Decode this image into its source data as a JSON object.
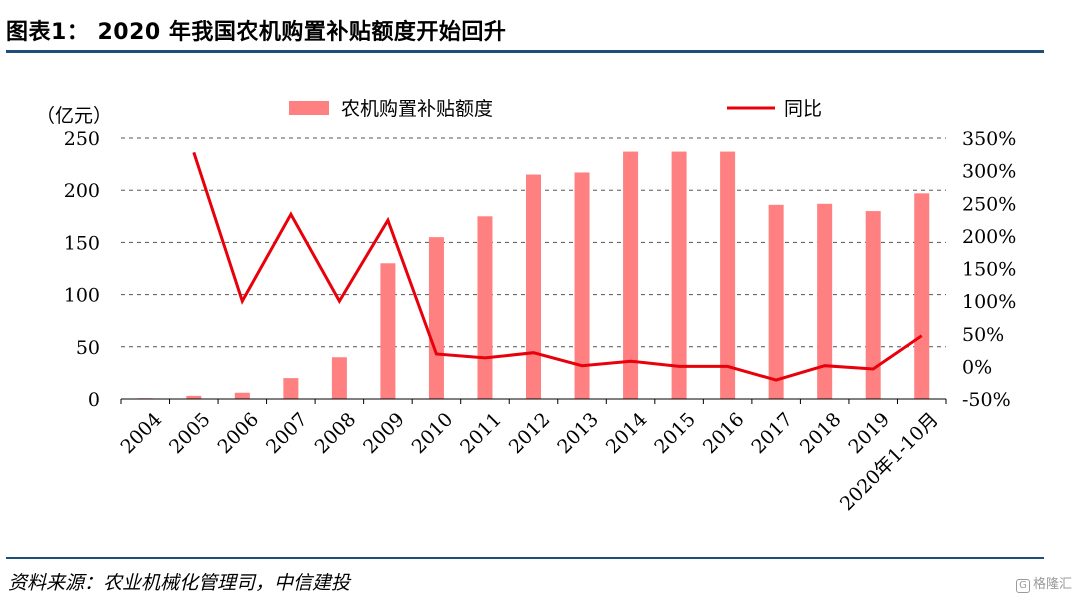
{
  "header": {
    "title": "图表1： 2020 年我国农机购置补贴额度开始回升"
  },
  "footer": {
    "source": "资料来源：农业机械化管理司，中信建投",
    "watermark": "格隆汇",
    "watermark_badge": "G"
  },
  "colors": {
    "rule": "#1f4e79",
    "bar": "#ff8080",
    "line": "#e8000b"
  },
  "chart_data": {
    "type": "bar+line",
    "left_unit_label": "（亿元）",
    "categories": [
      "2004",
      "2005",
      "2006",
      "2007",
      "2008",
      "2009",
      "2010",
      "2011",
      "2012",
      "2013",
      "2014",
      "2015",
      "2016",
      "2017",
      "2018",
      "2019",
      "2020年1-10月"
    ],
    "series": [
      {
        "name": "农机购置补贴额度",
        "type": "bar",
        "axis": "left",
        "values": [
          0.7,
          3,
          6,
          20,
          40,
          130,
          155,
          175,
          215,
          217,
          237,
          237,
          237,
          186,
          187,
          180,
          197
        ]
      },
      {
        "name": "同比",
        "type": "line",
        "axis": "right",
        "values": [
          null,
          328,
          100,
          233,
          100,
          224,
          19,
          13,
          21,
          1,
          8,
          0,
          0,
          -21,
          1,
          -4,
          47
        ]
      }
    ],
    "left_axis": {
      "ylim": [
        0,
        250
      ],
      "ticks": [
        0,
        50,
        100,
        150,
        200,
        250
      ],
      "tick_labels": [
        "0",
        "50",
        "100",
        "150",
        "200",
        "250"
      ]
    },
    "right_axis": {
      "ylim": [
        -50,
        350
      ],
      "ticks": [
        -50,
        0,
        50,
        100,
        150,
        200,
        250,
        300,
        350
      ],
      "tick_labels": [
        "-50%",
        "0%",
        "50%",
        "100%",
        "150%",
        "200%",
        "250%",
        "300%",
        "350%"
      ]
    },
    "grid": "dashed-horizontal",
    "legend_position": "top"
  }
}
